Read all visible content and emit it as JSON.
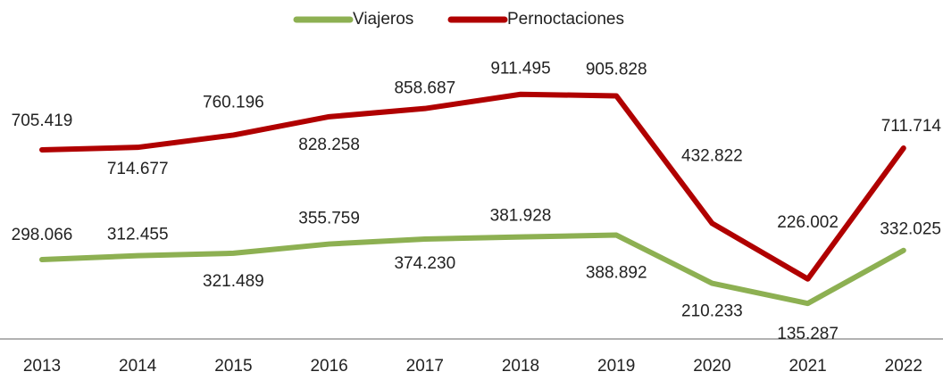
{
  "chart_data": {
    "type": "line",
    "categories": [
      "2013",
      "2014",
      "2015",
      "2016",
      "2017",
      "2018",
      "2019",
      "2020",
      "2021",
      "2022"
    ],
    "series": [
      {
        "name": "Viajeros",
        "color": "#8db052",
        "values": [
          298066,
          312455,
          321489,
          355759,
          374230,
          381928,
          388892,
          210233,
          135287,
          332025
        ],
        "value_labels": [
          "298.066",
          "312.455",
          "321.489",
          "355.759",
          "374.230",
          "381.928",
          "388.892",
          "210.233",
          "135.287",
          "332.025"
        ]
      },
      {
        "name": "Pernoctaciones",
        "color": "#b00000",
        "values": [
          705419,
          714677,
          760196,
          828258,
          858687,
          911495,
          905828,
          432822,
          226002,
          711714
        ],
        "value_labels": [
          "705.419",
          "714.677",
          "760.196",
          "828.258",
          "858.687",
          "911.495",
          "905.828",
          "432.822",
          "226.002",
          "711.714"
        ]
      }
    ],
    "ylim": [
      0,
      1000000
    ],
    "legend": "top"
  }
}
